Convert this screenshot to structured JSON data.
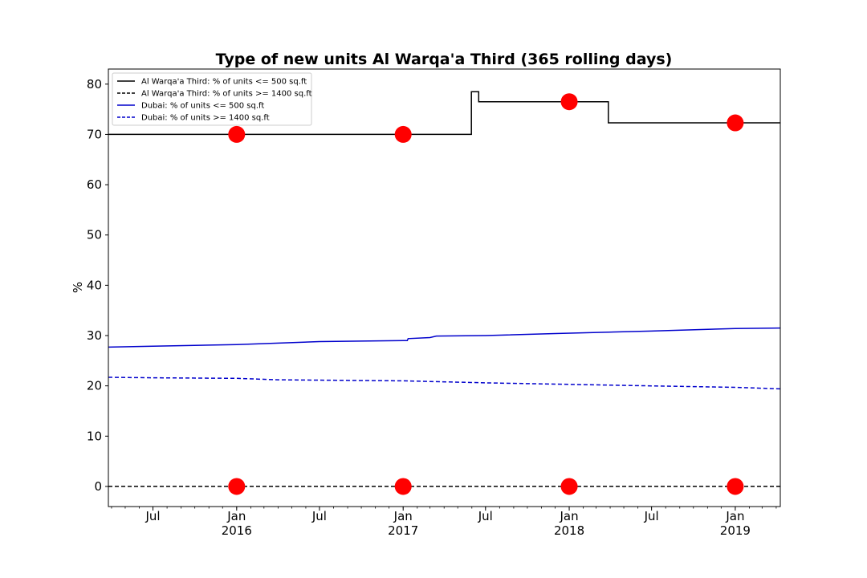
{
  "chart_data": {
    "type": "line",
    "title": "Type of new units Al Warqa'a Third (365 rolling days)",
    "xlabel": "",
    "ylabel": "%",
    "ylim": [
      -4,
      83
    ],
    "xlim": [
      "2015-03-25",
      "2019-04-10"
    ],
    "yticks": [
      0,
      10,
      20,
      30,
      40,
      50,
      60,
      70,
      80
    ],
    "xticks": [
      {
        "date": "2015-07-01",
        "label": "Jul",
        "sublabel": ""
      },
      {
        "date": "2016-01-01",
        "label": "Jan",
        "sublabel": "2016"
      },
      {
        "date": "2016-07-01",
        "label": "Jul",
        "sublabel": ""
      },
      {
        "date": "2017-01-01",
        "label": "Jan",
        "sublabel": "2017"
      },
      {
        "date": "2017-07-01",
        "label": "Jul",
        "sublabel": ""
      },
      {
        "date": "2018-01-01",
        "label": "Jan",
        "sublabel": "2018"
      },
      {
        "date": "2018-07-01",
        "label": "Jul",
        "sublabel": ""
      },
      {
        "date": "2019-01-01",
        "label": "Jan",
        "sublabel": "2019"
      }
    ],
    "legend_position": "top-left",
    "series": [
      {
        "name": "Al Warqa'a Third: % of units <= 500 sq.ft",
        "color": "#000000",
        "style": "solid",
        "step": true,
        "points": [
          [
            "2015-03-25",
            70.0
          ],
          [
            "2017-05-31",
            70.0
          ],
          [
            "2017-05-31",
            78.5
          ],
          [
            "2017-06-16",
            78.5
          ],
          [
            "2017-06-16",
            76.5
          ],
          [
            "2018-03-28",
            76.5
          ],
          [
            "2018-03-28",
            72.3
          ],
          [
            "2019-04-10",
            72.3
          ]
        ]
      },
      {
        "name": "Al Warqa'a Third: % of units >= 1400 sq.ft",
        "color": "#000000",
        "style": "dashed",
        "step": false,
        "points": [
          [
            "2015-03-25",
            0.0
          ],
          [
            "2019-04-10",
            0.0
          ]
        ]
      },
      {
        "name": "Dubai: % of units <= 500 sq.ft",
        "color": "#0000cc",
        "style": "solid",
        "step": false,
        "points": [
          [
            "2015-03-25",
            27.7
          ],
          [
            "2015-07-01",
            27.9
          ],
          [
            "2016-01-01",
            28.2
          ],
          [
            "2016-07-01",
            28.8
          ],
          [
            "2017-01-01",
            29.0
          ],
          [
            "2017-01-10",
            29.0
          ],
          [
            "2017-01-12",
            29.4
          ],
          [
            "2017-03-01",
            29.6
          ],
          [
            "2017-03-15",
            29.9
          ],
          [
            "2017-07-01",
            30.0
          ],
          [
            "2017-12-01",
            30.4
          ],
          [
            "2018-07-01",
            30.9
          ],
          [
            "2019-01-01",
            31.4
          ],
          [
            "2019-04-10",
            31.5
          ]
        ]
      },
      {
        "name": "Dubai: % of units >= 1400 sq.ft",
        "color": "#0000cc",
        "style": "dashed",
        "step": false,
        "points": [
          [
            "2015-03-25",
            21.7
          ],
          [
            "2015-07-01",
            21.6
          ],
          [
            "2016-01-01",
            21.5
          ],
          [
            "2016-04-01",
            21.2
          ],
          [
            "2017-01-01",
            21.0
          ],
          [
            "2017-07-01",
            20.6
          ],
          [
            "2018-01-01",
            20.3
          ],
          [
            "2018-07-01",
            20.0
          ],
          [
            "2019-01-01",
            19.7
          ],
          [
            "2019-04-10",
            19.4
          ]
        ]
      }
    ],
    "markers": {
      "color": "#ff0000",
      "points": [
        [
          "2016-01-01",
          70.0
        ],
        [
          "2017-01-01",
          70.0
        ],
        [
          "2018-01-01",
          76.5
        ],
        [
          "2019-01-01",
          72.3
        ],
        [
          "2016-01-01",
          0.0
        ],
        [
          "2017-01-01",
          0.0
        ],
        [
          "2018-01-01",
          0.0
        ],
        [
          "2019-01-01",
          0.0
        ]
      ]
    }
  }
}
